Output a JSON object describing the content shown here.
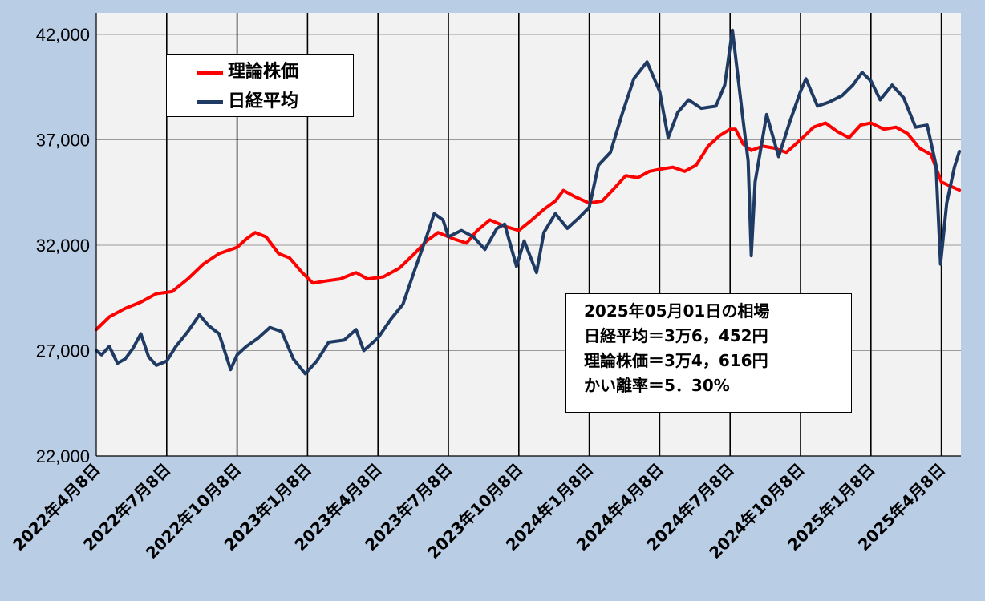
{
  "chart_data": {
    "type": "line",
    "title": "",
    "xlabel": "",
    "ylabel": "",
    "ylim": [
      22000,
      42000
    ],
    "yticks": [
      "42,000",
      "37,000",
      "32,000",
      "27,000",
      "22,000"
    ],
    "ytick_values": [
      42000,
      37000,
      32000,
      27000,
      22000
    ],
    "xlim": [
      "2022-04-08",
      "2025-05-01"
    ],
    "x_ticks": [
      {
        "date": "2022-04-08",
        "label": "2022年4月8日"
      },
      {
        "date": "2022-07-08",
        "label": "2022年7月8日"
      },
      {
        "date": "2022-10-08",
        "label": "2022年10月8日"
      },
      {
        "date": "2023-01-08",
        "label": "2023年1月8日"
      },
      {
        "date": "2023-04-08",
        "label": "2023年4月8日"
      },
      {
        "date": "2023-07-08",
        "label": "2023年7月8日"
      },
      {
        "date": "2023-10-08",
        "label": "2023年10月8日"
      },
      {
        "date": "2024-01-08",
        "label": "2024年1月8日"
      },
      {
        "date": "2024-04-08",
        "label": "2024年4月8日"
      },
      {
        "date": "2024-07-08",
        "label": "2024年7月8日"
      },
      {
        "date": "2024-10-08",
        "label": "2024年10月8日"
      },
      {
        "date": "2025-01-08",
        "label": "2025年1月8日"
      },
      {
        "date": "2025-04-08",
        "label": "2025年4月8日"
      }
    ],
    "grid": "vertical-lines-at-ticks",
    "legend_position": "top-left",
    "series": [
      {
        "name": "理論株価",
        "color": "#ff0000",
        "points": [
          [
            "2022-04-08",
            28000
          ],
          [
            "2022-04-25",
            28600
          ],
          [
            "2022-05-15",
            29000
          ],
          [
            "2022-06-05",
            29300
          ],
          [
            "2022-06-25",
            29700
          ],
          [
            "2022-07-15",
            29800
          ],
          [
            "2022-08-05",
            30400
          ],
          [
            "2022-08-25",
            31100
          ],
          [
            "2022-09-15",
            31600
          ],
          [
            "2022-10-08",
            31900
          ],
          [
            "2022-10-20",
            32300
          ],
          [
            "2022-11-01",
            32600
          ],
          [
            "2022-11-15",
            32400
          ],
          [
            "2022-12-01",
            31600
          ],
          [
            "2022-12-15",
            31400
          ],
          [
            "2023-01-01",
            30700
          ],
          [
            "2023-01-15",
            30200
          ],
          [
            "2023-02-01",
            30300
          ],
          [
            "2023-02-20",
            30400
          ],
          [
            "2023-03-10",
            30700
          ],
          [
            "2023-03-25",
            30400
          ],
          [
            "2023-04-15",
            30500
          ],
          [
            "2023-05-05",
            30900
          ],
          [
            "2023-05-25",
            31600
          ],
          [
            "2023-06-10",
            32200
          ],
          [
            "2023-06-25",
            32600
          ],
          [
            "2023-07-15",
            32300
          ],
          [
            "2023-08-01",
            32100
          ],
          [
            "2023-08-15",
            32700
          ],
          [
            "2023-09-01",
            33200
          ],
          [
            "2023-09-20",
            32900
          ],
          [
            "2023-10-08",
            32700
          ],
          [
            "2023-10-25",
            33200
          ],
          [
            "2023-11-10",
            33700
          ],
          [
            "2023-11-25",
            34100
          ],
          [
            "2023-12-05",
            34600
          ],
          [
            "2023-12-20",
            34300
          ],
          [
            "2024-01-08",
            34000
          ],
          [
            "2024-01-25",
            34100
          ],
          [
            "2024-02-10",
            34700
          ],
          [
            "2024-02-25",
            35300
          ],
          [
            "2024-03-10",
            35200
          ],
          [
            "2024-03-25",
            35500
          ],
          [
            "2024-04-08",
            35600
          ],
          [
            "2024-04-25",
            35700
          ],
          [
            "2024-05-10",
            35500
          ],
          [
            "2024-05-25",
            35800
          ],
          [
            "2024-06-10",
            36700
          ],
          [
            "2024-06-25",
            37200
          ],
          [
            "2024-07-08",
            37500
          ],
          [
            "2024-07-15",
            37500
          ],
          [
            "2024-07-25",
            36800
          ],
          [
            "2024-08-05",
            36500
          ],
          [
            "2024-08-20",
            36700
          ],
          [
            "2024-09-05",
            36600
          ],
          [
            "2024-09-20",
            36400
          ],
          [
            "2024-10-08",
            37000
          ],
          [
            "2024-10-25",
            37600
          ],
          [
            "2024-11-10",
            37800
          ],
          [
            "2024-11-25",
            37400
          ],
          [
            "2024-12-10",
            37100
          ],
          [
            "2024-12-25",
            37700
          ],
          [
            "2025-01-08",
            37800
          ],
          [
            "2025-01-25",
            37500
          ],
          [
            "2025-02-10",
            37600
          ],
          [
            "2025-02-25",
            37300
          ],
          [
            "2025-03-10",
            36600
          ],
          [
            "2025-03-25",
            36300
          ],
          [
            "2025-04-08",
            35000
          ],
          [
            "2025-04-20",
            34800
          ],
          [
            "2025-05-01",
            34616
          ]
        ]
      },
      {
        "name": "日経平均",
        "color": "#1f3b64",
        "points": [
          [
            "2022-04-08",
            27000
          ],
          [
            "2022-04-15",
            26800
          ],
          [
            "2022-04-25",
            27200
          ],
          [
            "2022-05-05",
            26400
          ],
          [
            "2022-05-15",
            26600
          ],
          [
            "2022-05-25",
            27100
          ],
          [
            "2022-06-05",
            27800
          ],
          [
            "2022-06-15",
            26700
          ],
          [
            "2022-06-25",
            26300
          ],
          [
            "2022-07-08",
            26500
          ],
          [
            "2022-07-20",
            27200
          ],
          [
            "2022-08-05",
            27900
          ],
          [
            "2022-08-20",
            28700
          ],
          [
            "2022-09-01",
            28200
          ],
          [
            "2022-09-15",
            27800
          ],
          [
            "2022-09-30",
            26100
          ],
          [
            "2022-10-08",
            26800
          ],
          [
            "2022-10-20",
            27200
          ],
          [
            "2022-11-05",
            27600
          ],
          [
            "2022-11-20",
            28100
          ],
          [
            "2022-12-05",
            27900
          ],
          [
            "2022-12-20",
            26600
          ],
          [
            "2023-01-05",
            25900
          ],
          [
            "2023-01-20",
            26500
          ],
          [
            "2023-02-05",
            27400
          ],
          [
            "2023-02-25",
            27500
          ],
          [
            "2023-03-10",
            28000
          ],
          [
            "2023-03-20",
            27000
          ],
          [
            "2023-04-08",
            27600
          ],
          [
            "2023-04-25",
            28500
          ],
          [
            "2023-05-10",
            29200
          ],
          [
            "2023-05-25",
            30800
          ],
          [
            "2023-06-10",
            32400
          ],
          [
            "2023-06-20",
            33500
          ],
          [
            "2023-07-01",
            33200
          ],
          [
            "2023-07-08",
            32400
          ],
          [
            "2023-07-25",
            32700
          ],
          [
            "2023-08-10",
            32400
          ],
          [
            "2023-08-25",
            31800
          ],
          [
            "2023-09-10",
            32800
          ],
          [
            "2023-09-20",
            33000
          ],
          [
            "2023-10-05",
            31000
          ],
          [
            "2023-10-15",
            32200
          ],
          [
            "2023-10-31",
            30700
          ],
          [
            "2023-11-10",
            32600
          ],
          [
            "2023-11-25",
            33500
          ],
          [
            "2023-12-10",
            32800
          ],
          [
            "2023-12-25",
            33300
          ],
          [
            "2024-01-08",
            33800
          ],
          [
            "2024-01-20",
            35800
          ],
          [
            "2024-02-05",
            36400
          ],
          [
            "2024-02-20",
            38200
          ],
          [
            "2024-03-05",
            39900
          ],
          [
            "2024-03-22",
            40700
          ],
          [
            "2024-04-08",
            39300
          ],
          [
            "2024-04-19",
            37100
          ],
          [
            "2024-05-01",
            38300
          ],
          [
            "2024-05-15",
            38900
          ],
          [
            "2024-06-01",
            38500
          ],
          [
            "2024-06-20",
            38600
          ],
          [
            "2024-07-01",
            39600
          ],
          [
            "2024-07-11",
            42200
          ],
          [
            "2024-07-25",
            37900
          ],
          [
            "2024-08-01",
            36000
          ],
          [
            "2024-08-05",
            31500
          ],
          [
            "2024-08-10",
            35000
          ],
          [
            "2024-08-25",
            38200
          ],
          [
            "2024-09-10",
            36200
          ],
          [
            "2024-09-25",
            37900
          ],
          [
            "2024-10-08",
            39300
          ],
          [
            "2024-10-15",
            39900
          ],
          [
            "2024-10-30",
            38600
          ],
          [
            "2024-11-15",
            38800
          ],
          [
            "2024-12-01",
            39100
          ],
          [
            "2024-12-15",
            39600
          ],
          [
            "2024-12-27",
            40200
          ],
          [
            "2025-01-08",
            39800
          ],
          [
            "2025-01-20",
            38900
          ],
          [
            "2025-02-05",
            39600
          ],
          [
            "2025-02-20",
            39000
          ],
          [
            "2025-03-05",
            37600
          ],
          [
            "2025-03-20",
            37700
          ],
          [
            "2025-04-01",
            35800
          ],
          [
            "2025-04-07",
            31100
          ],
          [
            "2025-04-15",
            34000
          ],
          [
            "2025-04-25",
            35700
          ],
          [
            "2025-05-01",
            36452
          ]
        ]
      }
    ]
  },
  "legend": {
    "items": [
      {
        "label": "理論株価",
        "color": "#ff0000"
      },
      {
        "label": "日経平均",
        "color": "#1f3b64"
      }
    ]
  },
  "info_box": {
    "lines": [
      "2025年05月01日の相場",
      "日経平均＝3万6，452円",
      "理論株価＝3万4，616円",
      "かい離率＝5．30%"
    ]
  }
}
